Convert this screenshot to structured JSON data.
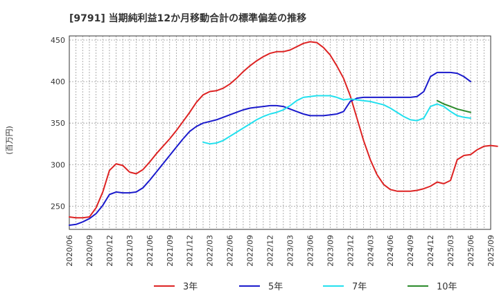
{
  "chart_data": {
    "type": "line",
    "title": "[9791]  当期純利益12か月移動合計の標準偏差の推移",
    "ylabel": "(百万円)",
    "xlabel": "",
    "ylim": [
      222,
      455
    ],
    "yticks": [
      250,
      300,
      350,
      400,
      450
    ],
    "xrange": [
      "2020/06",
      "2025/09"
    ],
    "x_tick_labels": [
      "2020/06",
      "2020/09",
      "2020/12",
      "2021/03",
      "2021/06",
      "2021/09",
      "2021/12",
      "2022/03",
      "2022/06",
      "2022/09",
      "2022/12",
      "2023/03",
      "2023/06",
      "2023/09",
      "2023/12",
      "2024/03",
      "2024/06",
      "2024/09",
      "2024/12",
      "2025/03",
      "2025/06",
      "2025/09"
    ],
    "grid": true,
    "legend_position": "bottom",
    "series": [
      {
        "name": "3年",
        "color": "#dd2222",
        "start": "2020/06",
        "values": [
          237,
          236,
          236,
          237,
          248,
          267,
          293,
          301,
          299,
          291,
          289,
          294,
          303,
          313,
          322,
          331,
          341,
          352,
          363,
          375,
          384,
          388,
          389,
          392,
          397,
          404,
          412,
          419,
          425,
          430,
          434,
          436,
          436,
          438,
          442,
          446,
          448,
          447,
          441,
          432,
          419,
          404,
          383,
          356,
          329,
          306,
          288,
          276,
          270,
          268,
          268,
          268,
          269,
          271,
          274,
          279,
          277,
          281,
          306,
          311,
          312,
          318,
          322,
          323,
          322
        ]
      },
      {
        "name": "5年",
        "color": "#1a1acc",
        "start": "2020/06",
        "values": [
          227,
          228,
          231,
          235,
          241,
          251,
          264,
          267,
          266,
          266,
          267,
          272,
          281,
          291,
          301,
          311,
          321,
          331,
          340,
          346,
          350,
          352,
          354,
          357,
          360,
          363,
          366,
          368,
          369,
          370,
          371,
          371,
          370,
          367,
          364,
          361,
          359,
          359,
          359,
          360,
          361,
          364,
          376,
          380,
          381,
          381,
          381,
          381,
          381,
          381,
          381,
          381,
          382,
          388,
          406,
          411,
          411,
          411,
          410,
          406,
          400
        ]
      },
      {
        "name": "7年",
        "color": "#22e0ee",
        "start": "2022/02",
        "values": [
          327,
          325,
          326,
          329,
          334,
          339,
          344,
          349,
          354,
          358,
          361,
          363,
          366,
          371,
          377,
          381,
          382,
          383,
          383,
          383,
          381,
          378,
          379,
          378,
          377,
          376,
          374,
          372,
          368,
          363,
          358,
          354,
          353,
          356,
          370,
          373,
          370,
          364,
          359,
          357,
          356
        ]
      },
      {
        "name": "10年",
        "color": "#2a8a2a",
        "start": "2025/01",
        "values": [
          377,
          373,
          370,
          367,
          365,
          363
        ]
      }
    ]
  }
}
